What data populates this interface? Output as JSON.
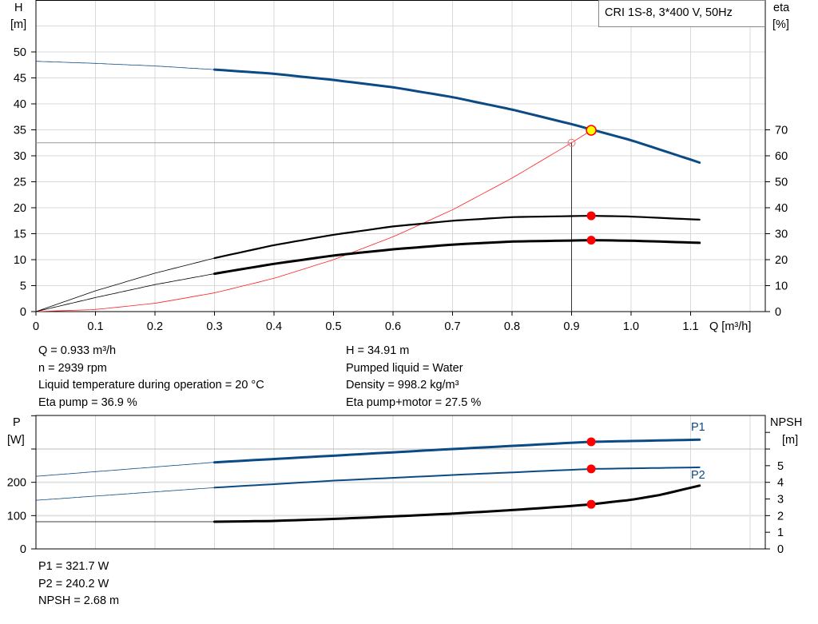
{
  "chart_data": [
    {
      "type": "line",
      "title": "CRI 1S-8, 3*400 V, 50Hz",
      "xlabel": "Q [m³/h]",
      "ylabel_left": "H\n[m]",
      "ylabel_left_lines": [
        "H",
        "[m]"
      ],
      "ylabel_right_lines": [
        "eta",
        "[%]"
      ],
      "xlim": [
        0,
        1.2
      ],
      "ylim_left": [
        0,
        60
      ],
      "ylim_right": [
        0,
        120
      ],
      "x_ticks": [
        "0",
        "0.1",
        "0.2",
        "0.3",
        "0.4",
        "0.5",
        "0.6",
        "0.7",
        "0.8",
        "0.9",
        "1.0",
        "1.1"
      ],
      "y_ticks_left": [
        "0",
        "5",
        "10",
        "15",
        "20",
        "25",
        "30",
        "35",
        "40",
        "45",
        "50"
      ],
      "y_ticks_right": [
        "0",
        "10",
        "20",
        "30",
        "40",
        "50",
        "60",
        "70"
      ],
      "grid": true,
      "series": [
        {
          "key": "H",
          "axis": "left",
          "color": "#0b4a84",
          "x": [
            0,
            0.1,
            0.2,
            0.3,
            0.4,
            0.5,
            0.6,
            0.7,
            0.8,
            0.9,
            1.0,
            1.115
          ],
          "y": [
            48.2,
            47.8,
            47.3,
            46.6,
            45.8,
            44.6,
            43.2,
            41.3,
            38.9,
            36.1,
            33.0,
            28.7
          ]
        },
        {
          "key": "eta_pump",
          "axis": "right",
          "color": "#000000",
          "x": [
            0,
            0.1,
            0.2,
            0.3,
            0.4,
            0.5,
            0.6,
            0.7,
            0.8,
            0.933,
            1.0,
            1.115
          ],
          "y": [
            0,
            8.0,
            14.8,
            20.6,
            25.6,
            29.6,
            32.8,
            35.0,
            36.4,
            36.9,
            36.6,
            35.4
          ]
        },
        {
          "key": "eta_total",
          "axis": "right",
          "color": "#000000",
          "x": [
            0,
            0.1,
            0.2,
            0.3,
            0.4,
            0.5,
            0.6,
            0.7,
            0.8,
            0.933,
            1.0,
            1.115
          ],
          "y": [
            0,
            5.4,
            10.4,
            14.6,
            18.4,
            21.6,
            24.0,
            25.8,
            27.0,
            27.5,
            27.3,
            26.5
          ]
        },
        {
          "key": "system",
          "axis": "left",
          "color": "#ff2020",
          "x": [
            0,
            0.1,
            0.2,
            0.3,
            0.4,
            0.5,
            0.6,
            0.7,
            0.8,
            0.9,
            0.933
          ],
          "y": [
            0,
            0.4,
            1.6,
            3.6,
            6.4,
            10.0,
            14.4,
            19.6,
            25.7,
            32.5,
            34.91
          ]
        }
      ],
      "duty_point": {
        "q": 0.933,
        "h": 34.91,
        "eta_pump": 36.9,
        "eta_total": 27.5
      },
      "requested_point": {
        "q": 0.9,
        "h": 32.5
      }
    },
    {
      "type": "line",
      "ylabel_left_lines": [
        "P",
        "[W]"
      ],
      "ylabel_right_lines": [
        "NPSH",
        "[m]"
      ],
      "xlim": [
        0,
        1.2
      ],
      "ylim_left": [
        0,
        400
      ],
      "ylim_right": [
        0,
        8
      ],
      "y_ticks_left": [
        "0",
        "100",
        "200"
      ],
      "y_ticks_right": [
        "0",
        "1",
        "2",
        "3",
        "4",
        "5"
      ],
      "grid": true,
      "series": [
        {
          "key": "P1",
          "name": "P1",
          "axis": "left",
          "color": "#0b4a84",
          "x": [
            0,
            0.3,
            0.5,
            0.7,
            0.933,
            1.115
          ],
          "y": [
            218,
            260,
            280,
            300,
            321.7,
            328
          ]
        },
        {
          "key": "P2",
          "name": "P2",
          "axis": "left",
          "color": "#0b4a84",
          "x": [
            0,
            0.3,
            0.5,
            0.7,
            0.933,
            1.115
          ],
          "y": [
            146,
            184,
            205,
            222,
            240.2,
            245
          ]
        },
        {
          "key": "NPSH",
          "axis": "right",
          "color": "#000000",
          "x": [
            0,
            0.3,
            0.4,
            0.5,
            0.6,
            0.7,
            0.8,
            0.9,
            0.933,
            1.0,
            1.05,
            1.115
          ],
          "y": [
            1.63,
            1.63,
            1.68,
            1.8,
            1.95,
            2.12,
            2.33,
            2.58,
            2.68,
            2.95,
            3.25,
            3.8
          ]
        }
      ],
      "duty_point": {
        "q": 0.933,
        "p1": 321.7,
        "p2": 240.2,
        "npsh": 2.68
      }
    }
  ],
  "info": {
    "left": [
      "Q = 0.933 m³/h",
      "n = 2939 rpm",
      "Liquid temperature during operation = 20 °C",
      "Eta pump = 36.9 %"
    ],
    "right": [
      "H = 34.91 m",
      "Pumped liquid = Water",
      "Density = 998.2 kg/m³",
      "Eta pump+motor = 27.5 %"
    ],
    "bottom": [
      "P1 = 321.7 W",
      "P2 = 240.2 W",
      "NPSH = 2.68 m"
    ]
  },
  "colors": {
    "blue": "#0b4a84",
    "red": "#ff0000",
    "yellow": "#ffff00",
    "grid": "#d9d9d9"
  }
}
